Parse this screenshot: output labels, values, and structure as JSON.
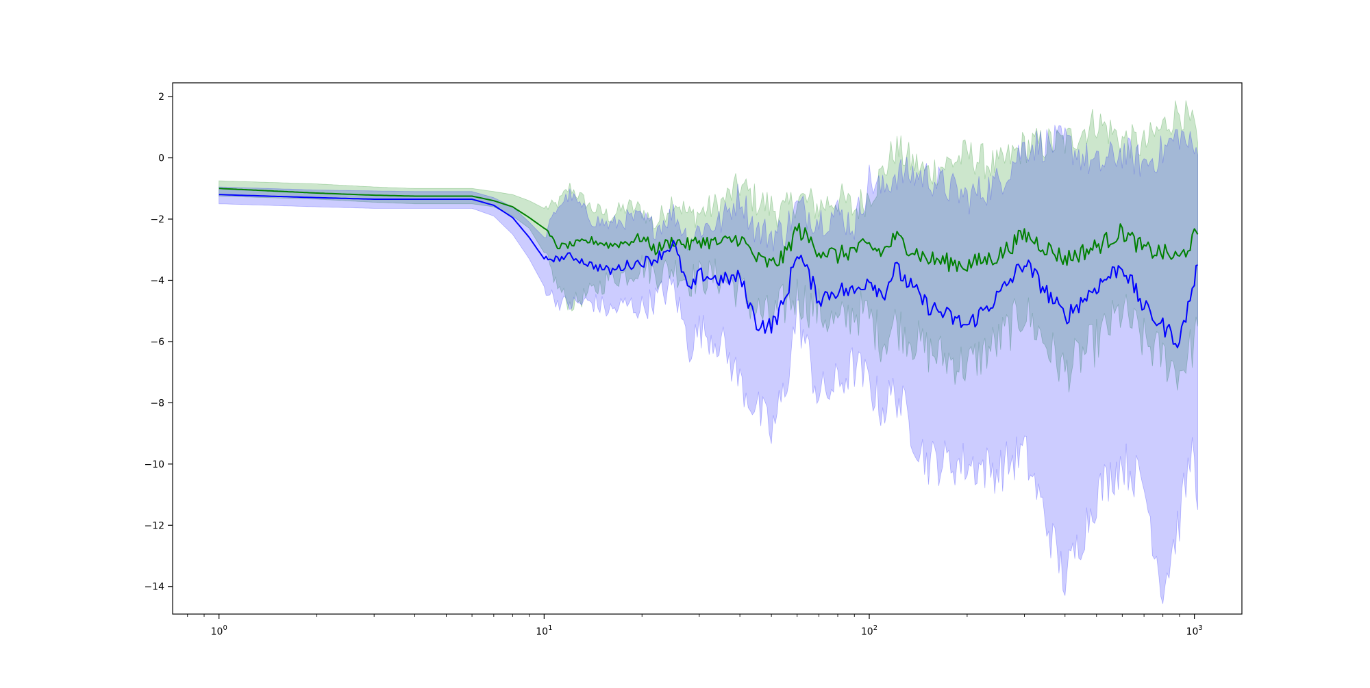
{
  "chart_data": {
    "type": "line",
    "title": "",
    "xlabel": "",
    "ylabel": "",
    "xscale": "log",
    "xlim": [
      0.72,
      1400
    ],
    "ylim": [
      -14.9,
      2.45
    ],
    "grid": false,
    "legend": "none",
    "x_ticks": [
      {
        "value": 1,
        "base": "10",
        "exp": "0"
      },
      {
        "value": 10,
        "base": "10",
        "exp": "1"
      },
      {
        "value": 100,
        "base": "10",
        "exp": "2"
      },
      {
        "value": 1000,
        "base": "10",
        "exp": "3"
      }
    ],
    "y_ticks": [
      {
        "value": 2,
        "label": "2"
      },
      {
        "value": 0,
        "label": "0"
      },
      {
        "value": -2,
        "label": "−2"
      },
      {
        "value": -4,
        "label": "−4"
      },
      {
        "value": -6,
        "label": "−6"
      },
      {
        "value": -8,
        "label": "−8"
      },
      {
        "value": -10,
        "label": "−10"
      },
      {
        "value": -12,
        "label": "−12"
      },
      {
        "value": -14,
        "label": "−14"
      }
    ],
    "series": [
      {
        "color": "#008000",
        "band_color": "#008000",
        "band_opacity": 0.2,
        "x": [
          1,
          2,
          3,
          4,
          5,
          6,
          7,
          8,
          9,
          10,
          11,
          12,
          14,
          16,
          18,
          20,
          22,
          25,
          28,
          30,
          35,
          40,
          45,
          50,
          55,
          60,
          70,
          80,
          90,
          100,
          110,
          120,
          150,
          200,
          250,
          300,
          400,
          500,
          600,
          700,
          800,
          900,
          1000,
          1024
        ],
        "y": [
          -1.0,
          -1.15,
          -1.22,
          -1.25,
          -1.25,
          -1.25,
          -1.4,
          -1.6,
          -1.95,
          -2.3,
          -2.9,
          -2.85,
          -2.7,
          -2.85,
          -2.75,
          -2.6,
          -3.0,
          -2.7,
          -2.85,
          -2.7,
          -2.8,
          -2.6,
          -3.3,
          -3.5,
          -3.2,
          -2.3,
          -3.0,
          -3.2,
          -3.0,
          -2.9,
          -3.1,
          -2.6,
          -3.3,
          -3.5,
          -3.2,
          -2.5,
          -3.3,
          -2.9,
          -2.4,
          -3.0,
          -3.1,
          -3.3,
          -2.6,
          -2.5
        ],
        "upper": [
          -0.75,
          -0.85,
          -0.95,
          -1.0,
          -1.0,
          -1.0,
          -1.1,
          -1.2,
          -1.4,
          -1.65,
          -1.5,
          -0.95,
          -1.65,
          -1.9,
          -1.6,
          -1.7,
          -2.2,
          -1.3,
          -1.9,
          -1.8,
          -1.5,
          -0.9,
          -1.4,
          -1.6,
          -1.8,
          -1.3,
          -1.6,
          -1.3,
          -1.7,
          -1.2,
          -0.5,
          0.3,
          -0.5,
          0.1,
          -0.3,
          0.4,
          0.5,
          1.2,
          0.6,
          0.4,
          1.0,
          1.6,
          0.9,
          0.5
        ],
        "lower": [
          -1.25,
          -1.35,
          -1.45,
          -1.5,
          -1.5,
          -1.5,
          -1.6,
          -1.9,
          -2.3,
          -3.1,
          -4.2,
          -4.8,
          -4.4,
          -3.9,
          -3.8,
          -3.5,
          -3.8,
          -3.6,
          -4.0,
          -3.9,
          -3.9,
          -4.3,
          -5.0,
          -5.3,
          -4.8,
          -4.5,
          -5.0,
          -5.5,
          -5.0,
          -5.2,
          -6.0,
          -5.4,
          -6.3,
          -6.8,
          -6.0,
          -5.0,
          -7.0,
          -6.0,
          -5.0,
          -6.0,
          -6.5,
          -7.0,
          -6.0,
          -5.5
        ]
      },
      {
        "color": "#0000ff",
        "band_color": "#0000ff",
        "band_opacity": 0.2,
        "x": [
          1,
          2,
          3,
          4,
          5,
          6,
          7,
          8,
          9,
          10,
          11,
          12,
          14,
          16,
          18,
          20,
          22,
          25,
          28,
          30,
          35,
          40,
          45,
          50,
          55,
          60,
          70,
          80,
          90,
          100,
          110,
          120,
          150,
          200,
          250,
          300,
          400,
          500,
          600,
          700,
          800,
          900,
          1000,
          1024
        ],
        "y": [
          -1.2,
          -1.3,
          -1.35,
          -1.35,
          -1.35,
          -1.35,
          -1.55,
          -1.95,
          -2.6,
          -3.3,
          -3.3,
          -3.2,
          -3.5,
          -3.7,
          -3.5,
          -3.4,
          -3.3,
          -2.8,
          -4.4,
          -3.8,
          -4.0,
          -3.9,
          -5.4,
          -5.5,
          -4.7,
          -3.0,
          -4.6,
          -4.3,
          -4.4,
          -3.9,
          -4.5,
          -3.6,
          -4.8,
          -5.5,
          -4.5,
          -3.4,
          -5.2,
          -4.2,
          -3.5,
          -4.9,
          -5.5,
          -6.0,
          -4.0,
          -3.5
        ],
        "upper": [
          -0.95,
          -1.05,
          -1.08,
          -1.1,
          -1.1,
          -1.1,
          -1.3,
          -1.6,
          -2.1,
          -2.6,
          -1.6,
          -1.2,
          -2.0,
          -2.2,
          -2.0,
          -2.0,
          -2.3,
          -1.8,
          -2.7,
          -2.3,
          -2.1,
          -1.2,
          -2.4,
          -2.5,
          -2.4,
          -1.6,
          -2.0,
          -1.8,
          -2.2,
          -0.7,
          -1.1,
          -0.5,
          -0.6,
          -1.3,
          -0.8,
          0.4,
          0.5,
          -0.3,
          0.2,
          -0.2,
          0.2,
          0.8,
          0.2,
          0.1
        ],
        "lower": [
          -1.5,
          -1.6,
          -1.65,
          -1.65,
          -1.65,
          -1.65,
          -1.9,
          -2.5,
          -3.3,
          -4.2,
          -4.7,
          -4.8,
          -4.7,
          -5.0,
          -4.8,
          -4.9,
          -4.6,
          -4.2,
          -6.2,
          -5.6,
          -6.0,
          -7.3,
          -8.2,
          -9.0,
          -7.6,
          -5.0,
          -7.8,
          -7.4,
          -6.8,
          -7.4,
          -8.2,
          -7.6,
          -9.9,
          -10.0,
          -10.2,
          -9.6,
          -13.8,
          -11.0,
          -9.9,
          -10.7,
          -14.1,
          -11.8,
          -9.2,
          -11.5
        ]
      }
    ]
  }
}
